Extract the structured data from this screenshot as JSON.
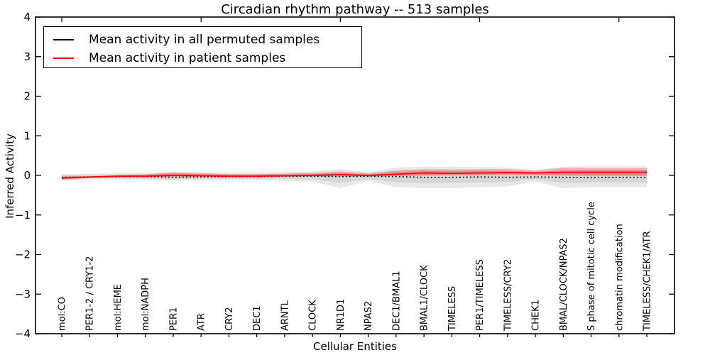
{
  "chart_data": {
    "type": "line",
    "title": "Circadian rhythm pathway -- 513 samples",
    "xlabel": "Cellular Entities",
    "ylabel": "Inferred Activity",
    "ylim": [
      -4,
      4
    ],
    "ytick_values": [
      4,
      3,
      2,
      1,
      0,
      -1,
      -2,
      -3,
      -4
    ],
    "ytick_labels": [
      "4",
      "3",
      "2",
      "1",
      "0",
      "−1",
      "−2",
      "−3",
      "−4"
    ],
    "x_major_tick_indices": [
      0,
      5,
      10,
      15,
      20
    ],
    "grid": false,
    "categories": [
      "mol:CO",
      "PER1-2 / CRY1-2",
      "mol:HEME",
      "mol:NADPH",
      "PER1",
      "ATR",
      "CRY2",
      "DEC1",
      "ARNTL",
      "CLOCK",
      "NR1D1",
      "NPAS2",
      "DEC1/BMAL1",
      "BMAL1/CLOCK",
      "TIMELESS",
      "PER1/TIMELESS",
      "TIMELESS/CRY2",
      "CHEK1",
      "BMAL/CLOCK/NPAS2",
      "S phase of mitotic cell cycle",
      "chromatin modification",
      "TIMELESS/CHEK1/ATR"
    ],
    "legend": {
      "position": "upper left",
      "entries": [
        {
          "label": "Mean activity in all permuted samples",
          "color": "#000000"
        },
        {
          "label": "Mean activity in patient samples",
          "color": "#ff0000"
        }
      ]
    },
    "series": [
      {
        "name": "Mean activity in all permuted samples",
        "color": "#000000",
        "line_style": "dotted",
        "values": [
          -0.05,
          -0.04,
          -0.03,
          -0.03,
          -0.05,
          -0.04,
          -0.03,
          -0.03,
          -0.02,
          -0.02,
          -0.03,
          -0.02,
          -0.03,
          -0.05,
          -0.05,
          -0.04,
          -0.05,
          -0.04,
          -0.05,
          -0.06,
          -0.05,
          -0.05
        ]
      },
      {
        "name": "Mean activity in patient samples",
        "color": "#ff0000",
        "line_style": "solid",
        "values": [
          -0.07,
          -0.04,
          -0.02,
          -0.02,
          0.0,
          -0.01,
          -0.02,
          -0.02,
          -0.01,
          0.0,
          0.02,
          0.0,
          0.03,
          0.06,
          0.05,
          0.06,
          0.07,
          0.06,
          0.08,
          0.08,
          0.08,
          0.08
        ]
      }
    ],
    "bands": [
      {
        "name": "permuted-sample-range-outer",
        "color": "rgba(0,0,0,0.09)",
        "upper": [
          0.03,
          0.04,
          0.05,
          0.06,
          0.07,
          0.06,
          0.06,
          0.07,
          0.08,
          0.1,
          0.16,
          0.08,
          0.2,
          0.22,
          0.22,
          0.22,
          0.2,
          0.13,
          0.22,
          0.23,
          0.23,
          0.23
        ],
        "lower": [
          -0.12,
          -0.1,
          -0.1,
          -0.12,
          -0.13,
          -0.12,
          -0.12,
          -0.12,
          -0.14,
          -0.16,
          -0.32,
          -0.14,
          -0.3,
          -0.32,
          -0.32,
          -0.3,
          -0.28,
          -0.16,
          -0.32,
          -0.3,
          -0.3,
          -0.3
        ]
      },
      {
        "name": "permuted-sample-range-inner",
        "color": "rgba(0,0,0,0.08)",
        "upper": [
          0.02,
          0.02,
          0.03,
          0.04,
          0.05,
          0.04,
          0.04,
          0.04,
          0.05,
          0.06,
          0.09,
          0.05,
          0.12,
          0.13,
          0.13,
          0.13,
          0.12,
          0.08,
          0.13,
          0.14,
          0.14,
          0.14
        ],
        "lower": [
          -0.08,
          -0.07,
          -0.07,
          -0.08,
          -0.1,
          -0.08,
          -0.08,
          -0.08,
          -0.09,
          -0.1,
          -0.19,
          -0.09,
          -0.18,
          -0.19,
          -0.19,
          -0.18,
          -0.17,
          -0.1,
          -0.19,
          -0.18,
          -0.18,
          -0.18
        ]
      },
      {
        "name": "patient-sample-range-outer",
        "color": "rgba(255,0,0,0.22)",
        "upper": [
          -0.02,
          -0.02,
          0.0,
          0.02,
          0.09,
          0.07,
          0.03,
          0.03,
          0.04,
          0.06,
          0.1,
          0.05,
          0.12,
          0.16,
          0.15,
          0.16,
          0.16,
          0.13,
          0.19,
          0.18,
          0.18,
          0.18
        ],
        "lower": [
          -0.12,
          -0.07,
          -0.05,
          -0.05,
          -0.04,
          -0.04,
          -0.05,
          -0.05,
          -0.04,
          -0.03,
          -0.03,
          -0.03,
          -0.02,
          -0.01,
          0.0,
          0.0,
          0.01,
          0.0,
          -0.01,
          -0.02,
          -0.02,
          -0.02
        ]
      },
      {
        "name": "patient-sample-range-inner",
        "color": "rgba(255,0,0,0.20)",
        "upper": [
          -0.04,
          -0.03,
          -0.01,
          0.0,
          0.05,
          0.03,
          0.01,
          0.01,
          0.02,
          0.03,
          0.06,
          0.02,
          0.08,
          0.11,
          0.1,
          0.11,
          0.11,
          0.09,
          0.13,
          0.13,
          0.13,
          0.13
        ],
        "lower": [
          -0.1,
          -0.06,
          -0.04,
          -0.04,
          -0.03,
          -0.03,
          -0.04,
          -0.04,
          -0.03,
          -0.02,
          -0.02,
          -0.02,
          -0.01,
          0.01,
          0.01,
          0.02,
          0.03,
          0.02,
          0.02,
          0.01,
          0.01,
          0.01
        ]
      }
    ]
  }
}
